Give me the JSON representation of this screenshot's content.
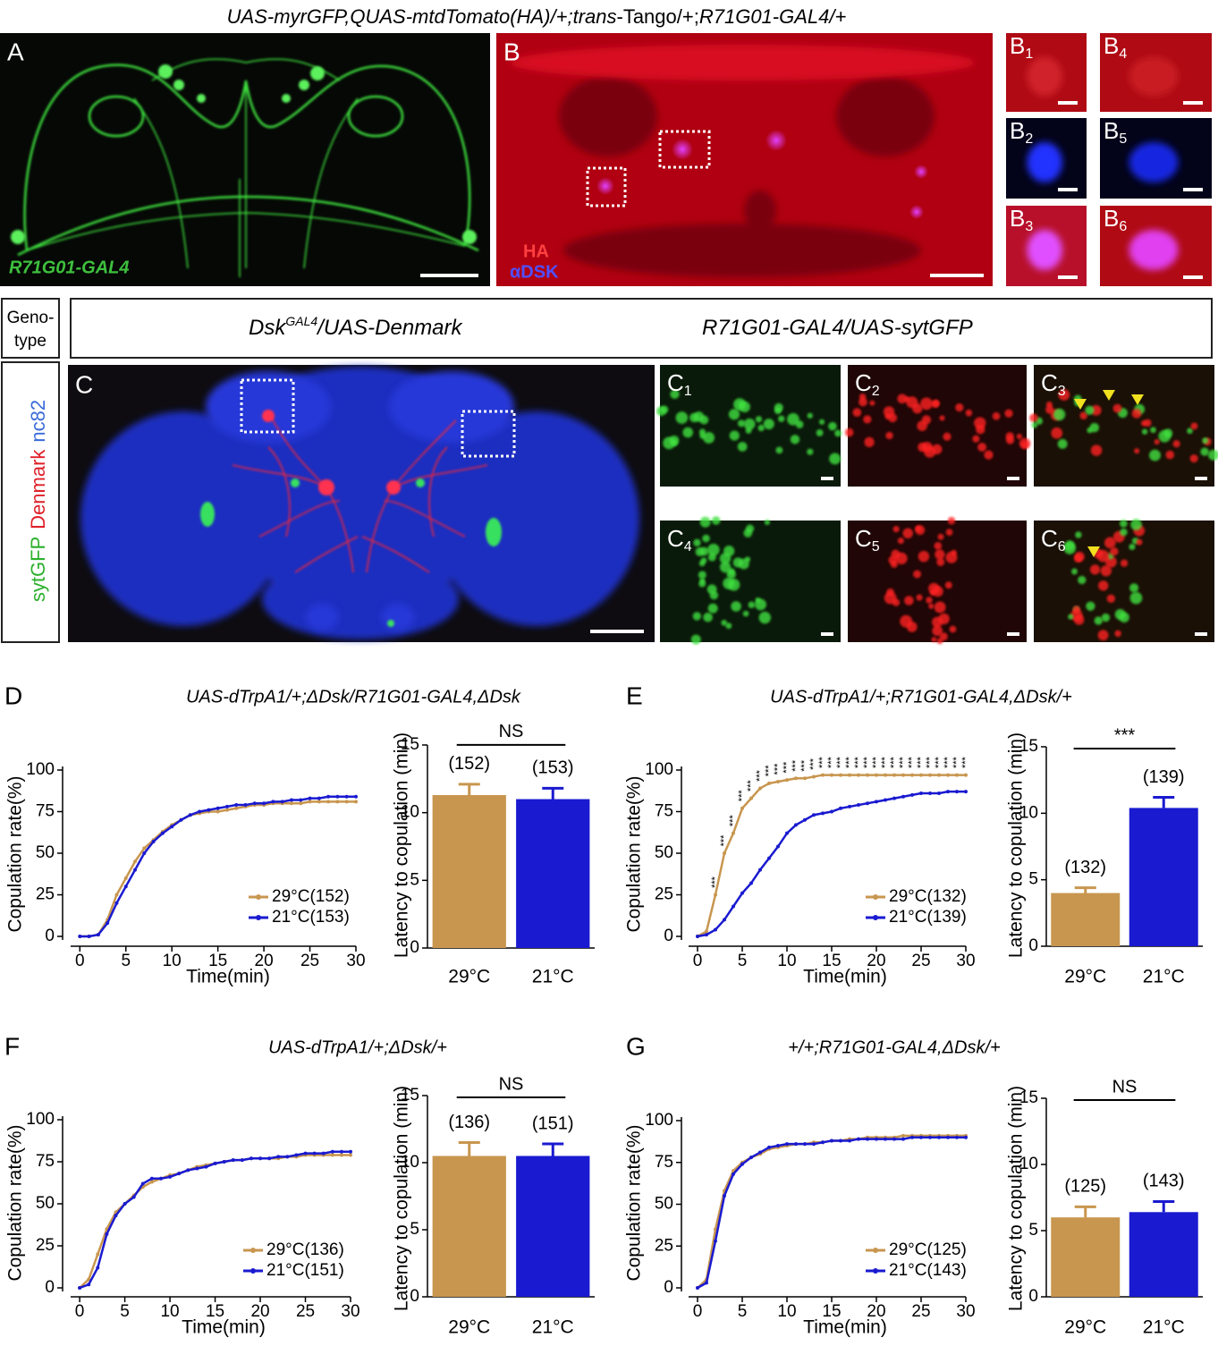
{
  "title": [
    {
      "text": "UAS-myrGFP,QUAS-mtdTomato(HA)/+;",
      "italic": true
    },
    {
      "text": "trans",
      "italic": true
    },
    {
      "text": "-Tango/+;",
      "italic": false
    },
    {
      "text": "R71G01-GAL4/+",
      "italic": true
    }
  ],
  "panel_A": {
    "label": "A",
    "caption": "R71G01-GAL4"
  },
  "panel_B": {
    "label": "B",
    "channels": [
      "HA",
      "αDSK"
    ],
    "insets": [
      {
        "label": "B",
        "index": "1"
      },
      {
        "label": "B",
        "index": "4"
      },
      {
        "label": "B",
        "index": "2"
      },
      {
        "label": "B",
        "index": "5"
      },
      {
        "label": "B",
        "index": "3"
      },
      {
        "label": "B",
        "index": "6"
      }
    ]
  },
  "genotype": {
    "header": [
      "Geno-",
      "type"
    ],
    "lines": [
      {
        "gene": "Dsk",
        "sup": "GAL4",
        "rest": "/UAS-Denmark"
      },
      {
        "text": "R71G01-GAL4/UAS-sytGFP"
      }
    ]
  },
  "panel_C": {
    "label": "C",
    "channels": [
      "sytGFP",
      "Denmark",
      "nc82"
    ],
    "insets": [
      {
        "label": "C",
        "index": "1"
      },
      {
        "label": "C",
        "index": "2"
      },
      {
        "label": "C",
        "index": "3"
      },
      {
        "label": "C",
        "index": "4"
      },
      {
        "label": "C",
        "index": "5"
      },
      {
        "label": "C",
        "index": "6"
      }
    ]
  },
  "chart_data": [
    {
      "type": "line",
      "panel": "D",
      "title": "UAS-dTrpA1/+;ΔDsk/R71G01-GAL4,ΔDsk",
      "xlabel": "Time(min)",
      "ylabel": "Copulation rate(%)",
      "x": [
        0,
        1,
        2,
        3,
        4,
        5,
        6,
        7,
        8,
        9,
        10,
        11,
        12,
        13,
        14,
        15,
        16,
        17,
        18,
        19,
        20,
        21,
        22,
        23,
        24,
        25,
        26,
        27,
        28,
        29,
        30
      ],
      "xlim": [
        -1,
        30
      ],
      "ylim": [
        0,
        100
      ],
      "xticks": [
        0,
        5,
        10,
        15,
        20,
        25,
        30
      ],
      "yticks": [
        0,
        25,
        50,
        75,
        100
      ],
      "legend": "lower right",
      "series": [
        {
          "name": "29°C(152)",
          "color": "#c8964f",
          "values": [
            0,
            0,
            1,
            10,
            25,
            35,
            45,
            53,
            58,
            63,
            67,
            70,
            73,
            74,
            75,
            75,
            76,
            77,
            78,
            79,
            79,
            80,
            80,
            80,
            80,
            81,
            81,
            81,
            81,
            81,
            81
          ]
        },
        {
          "name": "21°C(153)",
          "color": "#1a1ad0",
          "values": [
            0,
            0,
            1,
            8,
            20,
            30,
            40,
            50,
            57,
            62,
            66,
            70,
            73,
            75,
            76,
            77,
            78,
            79,
            79,
            80,
            80,
            81,
            81,
            82,
            82,
            83,
            83,
            84,
            84,
            84,
            84
          ]
        }
      ]
    },
    {
      "type": "bar",
      "ylabel": "Latency to copulation (min)",
      "categories": [
        "29°C",
        "21°C"
      ],
      "values": [
        11.3,
        11.0
      ],
      "errors": [
        0.8,
        0.8
      ],
      "colors": [
        "#c8964f",
        "#1a1ad0"
      ],
      "n_labels": [
        "(152)",
        "(153)"
      ],
      "significance": "NS",
      "ylim": [
        0,
        15
      ],
      "yticks": [
        0,
        5,
        10,
        15
      ]
    },
    {
      "type": "line",
      "panel": "E",
      "title": "UAS-dTrpA1/+;R71G01-GAL4,ΔDsk/+",
      "xlabel": "Time(min)",
      "ylabel": "Copulation rate(%)",
      "x": [
        0,
        1,
        2,
        3,
        4,
        5,
        6,
        7,
        8,
        9,
        10,
        11,
        12,
        13,
        14,
        15,
        16,
        17,
        18,
        19,
        20,
        21,
        22,
        23,
        24,
        25,
        26,
        27,
        28,
        29,
        30
      ],
      "xlim": [
        -1,
        30
      ],
      "ylim": [
        0,
        100
      ],
      "xticks": [
        0,
        5,
        10,
        15,
        20,
        25,
        30
      ],
      "yticks": [
        0,
        25,
        50,
        75,
        100
      ],
      "legend": "lower right",
      "series": [
        {
          "name": "29°C(132)",
          "color": "#c8964f",
          "values": [
            0,
            3,
            25,
            50,
            62,
            77,
            83,
            89,
            92,
            93,
            94,
            95,
            95,
            96,
            97,
            97,
            97,
            97,
            97,
            97,
            97,
            97,
            97,
            97,
            97,
            97,
            97,
            97,
            97,
            97,
            97
          ]
        },
        {
          "name": "21°C(139)",
          "color": "#1a1ad0",
          "values": [
            0,
            1,
            4,
            10,
            18,
            26,
            32,
            40,
            47,
            54,
            62,
            67,
            70,
            73,
            74,
            75,
            77,
            78,
            79,
            80,
            81,
            82,
            83,
            84,
            85,
            86,
            86,
            86,
            87,
            87,
            87
          ]
        }
      ],
      "annotation": {
        "text": "***",
        "x": [
          2,
          3,
          4,
          5,
          6,
          7,
          8,
          9,
          10,
          11,
          12,
          13,
          14,
          15,
          16,
          17,
          18,
          19,
          20,
          21,
          22,
          23,
          24,
          25,
          26,
          27,
          28,
          29,
          30
        ]
      }
    },
    {
      "type": "bar",
      "ylabel": "Latency to copulation (min)",
      "categories": [
        "29°C",
        "21°C"
      ],
      "values": [
        4.0,
        10.4
      ],
      "errors": [
        0.4,
        0.8
      ],
      "colors": [
        "#c8964f",
        "#1a1ad0"
      ],
      "n_labels": [
        "(132)",
        "(139)"
      ],
      "significance": "***",
      "ylim": [
        0,
        15
      ],
      "yticks": [
        0,
        5,
        10,
        15
      ]
    },
    {
      "type": "line",
      "panel": "F",
      "title": "UAS-dTrpA1/+;ΔDsk/+",
      "xlabel": "Time(min)",
      "ylabel": "Copulation rate(%)",
      "x": [
        0,
        1,
        2,
        3,
        4,
        5,
        6,
        7,
        8,
        9,
        10,
        11,
        12,
        13,
        14,
        15,
        16,
        17,
        18,
        19,
        20,
        21,
        22,
        23,
        24,
        25,
        26,
        27,
        28,
        29,
        30
      ],
      "xlim": [
        -1,
        30
      ],
      "ylim": [
        0,
        100
      ],
      "xticks": [
        0,
        5,
        10,
        15,
        20,
        25,
        30
      ],
      "yticks": [
        0,
        25,
        50,
        75,
        100
      ],
      "legend": "lower right",
      "series": [
        {
          "name": "29°C(136)",
          "color": "#c8964f",
          "values": [
            0,
            5,
            20,
            35,
            45,
            50,
            55,
            60,
            63,
            65,
            67,
            68,
            70,
            72,
            73,
            74,
            75,
            76,
            76,
            77,
            77,
            77,
            77,
            78,
            78,
            79,
            79,
            79,
            79,
            79,
            79
          ]
        },
        {
          "name": "21°C(151)",
          "color": "#1a1ad0",
          "values": [
            0,
            2,
            12,
            32,
            43,
            50,
            54,
            62,
            65,
            65,
            66,
            68,
            70,
            71,
            72,
            74,
            75,
            76,
            76,
            77,
            77,
            77,
            78,
            78,
            79,
            80,
            80,
            80,
            81,
            81,
            81
          ]
        }
      ]
    },
    {
      "type": "bar",
      "ylabel": "Latency to copulation (min)",
      "categories": [
        "29°C",
        "21°C"
      ],
      "values": [
        10.5,
        10.5
      ],
      "errors": [
        1.0,
        0.9
      ],
      "colors": [
        "#c8964f",
        "#1a1ad0"
      ],
      "n_labels": [
        "(136)",
        "(151)"
      ],
      "significance": "NS",
      "ylim": [
        0,
        15
      ],
      "yticks": [
        0,
        5,
        10,
        15
      ]
    },
    {
      "type": "line",
      "panel": "G",
      "title": "+/+;R71G01-GAL4,ΔDsk/+",
      "xlabel": "Time(min)",
      "ylabel": "Copulation rate(%)",
      "x": [
        0,
        1,
        2,
        3,
        4,
        5,
        6,
        7,
        8,
        9,
        10,
        11,
        12,
        13,
        14,
        15,
        16,
        17,
        18,
        19,
        20,
        21,
        22,
        23,
        24,
        25,
        26,
        27,
        28,
        29,
        30
      ],
      "xlim": [
        -1,
        30
      ],
      "ylim": [
        0,
        100
      ],
      "xticks": [
        0,
        5,
        10,
        15,
        20,
        25,
        30
      ],
      "yticks": [
        0,
        25,
        50,
        75,
        100
      ],
      "legend": "lower right",
      "series": [
        {
          "name": "29°C(125)",
          "color": "#c8964f",
          "values": [
            0,
            5,
            35,
            58,
            70,
            75,
            78,
            80,
            83,
            84,
            85,
            86,
            86,
            87,
            87,
            88,
            88,
            89,
            89,
            90,
            90,
            90,
            90,
            91,
            91,
            91,
            91,
            91,
            91,
            91,
            91
          ]
        },
        {
          "name": "21°C(143)",
          "color": "#1a1ad0",
          "values": [
            0,
            3,
            28,
            55,
            68,
            74,
            78,
            81,
            84,
            85,
            86,
            86,
            86,
            86,
            87,
            88,
            88,
            88,
            89,
            89,
            89,
            89,
            89,
            89,
            90,
            90,
            90,
            90,
            90,
            90,
            90
          ]
        }
      ]
    },
    {
      "type": "bar",
      "ylabel": "Latency to copulation (min)",
      "categories": [
        "29°C",
        "21°C"
      ],
      "values": [
        6.0,
        6.4
      ],
      "errors": [
        0.8,
        0.8
      ],
      "colors": [
        "#c8964f",
        "#1a1ad0"
      ],
      "n_labels": [
        "(125)",
        "(143)"
      ],
      "significance": "NS",
      "ylim": [
        0,
        15
      ],
      "yticks": [
        0,
        5,
        10,
        15
      ]
    }
  ]
}
